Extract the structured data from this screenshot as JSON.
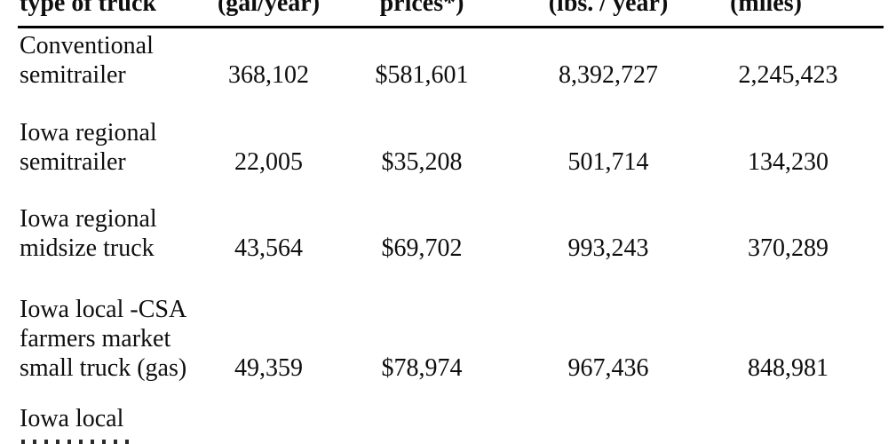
{
  "document": {
    "table": {
      "headers": [
        "type of truck",
        "(gal/year)",
        "prices*)",
        "(lbs. / year)",
        "(miles)"
      ],
      "rows": [
        {
          "label_lines": [
            "Conventional",
            "semitrailer"
          ],
          "values": [
            "368,102",
            "$581,601",
            "8,392,727",
            "2,245,423"
          ]
        },
        {
          "label_lines": [
            "Iowa regional",
            "semitrailer"
          ],
          "values": [
            "22,005",
            "$35,208",
            "501,714",
            "134,230"
          ]
        },
        {
          "label_lines": [
            "Iowa regional",
            "midsize truck"
          ],
          "values": [
            "43,564",
            "$69,702",
            "993,243",
            "370,289"
          ]
        },
        {
          "label_lines": [
            "Iowa local -CSA",
            "farmers market",
            "small truck (gas)"
          ],
          "values": [
            "49,359",
            "$78,974",
            "967,436",
            "848,981"
          ]
        },
        {
          "label_lines": [
            "Iowa local"
          ],
          "values": []
        }
      ]
    },
    "colors": {
      "text": "#0e0e0e",
      "background": "#ffffff",
      "rule": "#000000"
    }
  }
}
